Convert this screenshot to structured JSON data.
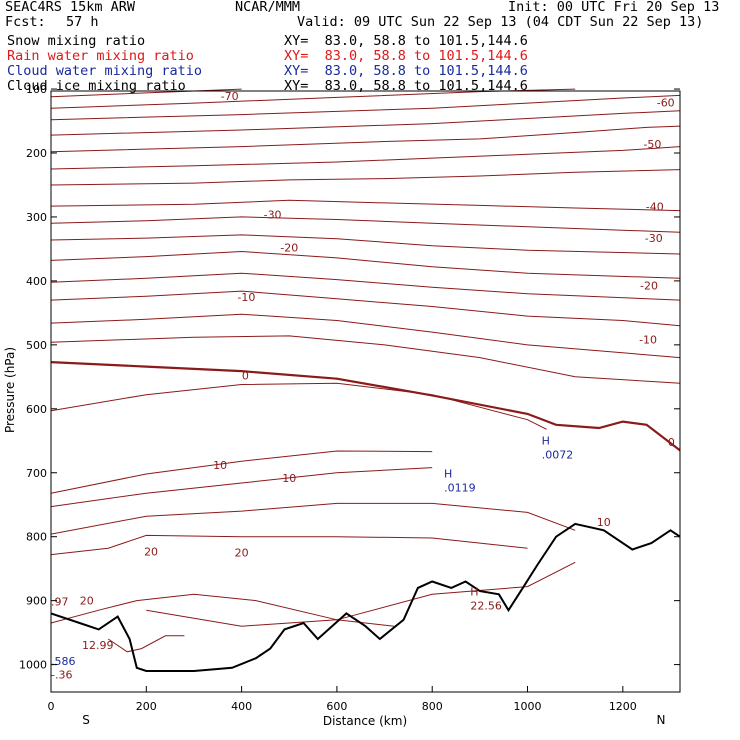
{
  "header": {
    "model": "SEAC4RS 15km ARW",
    "center": "NCAR/MMM",
    "init": "Init: 00 UTC Fri 20 Sep 13",
    "fcst_label": "Fcst:",
    "fcst_value": "57 h",
    "valid": "Valid: 09 UTC Sun 22 Sep 13 (04 CDT Sun 22 Sep 13)"
  },
  "fields": [
    {
      "name": "Snow mixing ratio",
      "xy": "XY=  83.0, 58.8 to 101.5,144.6",
      "color": "#000000"
    },
    {
      "name": "Rain water mixing ratio",
      "xy": "XY=  83.0, 58.8 to 101.5,144.6",
      "color": "#e01818"
    },
    {
      "name": "Cloud water mixing ratio",
      "xy": "XY=  83.0, 58.8 to 101.5,144.6",
      "color": "#1a2aa0"
    },
    {
      "name": "Cloud ice mixing ratio",
      "xy": "XY=  83.0, 58.8 to 101.5,144.6",
      "color": "#000000"
    }
  ],
  "chart_data": {
    "type": "line",
    "xlabel": "Distance (km)",
    "ylabel": "Pressure (hPa)",
    "xlim": [
      0,
      1320
    ],
    "ylim": [
      1050,
      100
    ],
    "x_ticks": [
      0,
      200,
      400,
      600,
      800,
      1000,
      1200
    ],
    "y_ticks": [
      100,
      200,
      300,
      400,
      500,
      600,
      700,
      800,
      900,
      1000
    ],
    "end_labels": {
      "left": "S",
      "right": "N"
    },
    "contour_color": "#8b1a1a",
    "temperature_contours": [
      {
        "label": "-70",
        "points": [
          [
            0,
            112
          ],
          [
            200,
            106
          ],
          [
            400,
            100
          ]
        ]
      },
      {
        "label": "",
        "points": [
          [
            0,
            130
          ],
          [
            300,
            122
          ],
          [
            600,
            113
          ],
          [
            900,
            104
          ],
          [
            1100,
            100
          ]
        ]
      },
      {
        "label": "-60",
        "points": [
          [
            0,
            148
          ],
          [
            400,
            140
          ],
          [
            800,
            130
          ],
          [
            1000,
            122
          ],
          [
            1200,
            114
          ],
          [
            1320,
            110
          ]
        ]
      },
      {
        "label": "",
        "points": [
          [
            0,
            172
          ],
          [
            400,
            164
          ],
          [
            800,
            154
          ],
          [
            1000,
            146
          ],
          [
            1200,
            138
          ],
          [
            1320,
            134
          ]
        ]
      },
      {
        "label": "-50",
        "points": [
          [
            0,
            198
          ],
          [
            400,
            190
          ],
          [
            700,
            182
          ],
          [
            900,
            178
          ],
          [
            1100,
            168
          ],
          [
            1250,
            160
          ],
          [
            1320,
            158
          ]
        ]
      },
      {
        "label": "",
        "points": [
          [
            0,
            225
          ],
          [
            300,
            220
          ],
          [
            600,
            214
          ],
          [
            800,
            208
          ],
          [
            1000,
            202
          ],
          [
            1200,
            196
          ],
          [
            1320,
            190
          ]
        ]
      },
      {
        "label": "",
        "points": [
          [
            0,
            250
          ],
          [
            300,
            247
          ],
          [
            500,
            242
          ],
          [
            700,
            240
          ],
          [
            900,
            236
          ],
          [
            1100,
            230
          ],
          [
            1320,
            226
          ]
        ]
      },
      {
        "label": "-40",
        "points": [
          [
            0,
            283
          ],
          [
            300,
            280
          ],
          [
            500,
            274
          ],
          [
            700,
            278
          ],
          [
            900,
            282
          ],
          [
            1100,
            286
          ],
          [
            1320,
            290
          ]
        ]
      },
      {
        "label": "-30",
        "points": [
          [
            0,
            310
          ],
          [
            200,
            306
          ],
          [
            400,
            300
          ],
          [
            600,
            304
          ],
          [
            800,
            310
          ],
          [
            1100,
            318
          ],
          [
            1320,
            324
          ]
        ]
      },
      {
        "label": "",
        "points": [
          [
            0,
            336
          ],
          [
            200,
            333
          ],
          [
            400,
            328
          ],
          [
            600,
            334
          ],
          [
            800,
            345
          ],
          [
            1000,
            352
          ],
          [
            1320,
            358
          ]
        ]
      },
      {
        "label": "-20",
        "points": [
          [
            0,
            368
          ],
          [
            200,
            362
          ],
          [
            400,
            354
          ],
          [
            600,
            364
          ],
          [
            800,
            378
          ],
          [
            1000,
            388
          ],
          [
            1320,
            396
          ]
        ]
      },
      {
        "label": "",
        "points": [
          [
            0,
            402
          ],
          [
            200,
            396
          ],
          [
            400,
            388
          ],
          [
            600,
            398
          ],
          [
            800,
            410
          ],
          [
            1000,
            420
          ],
          [
            1320,
            430
          ]
        ]
      },
      {
        "label": "-10",
        "points": [
          [
            0,
            430
          ],
          [
            200,
            424
          ],
          [
            400,
            416
          ],
          [
            600,
            428
          ],
          [
            800,
            440
          ],
          [
            1000,
            455
          ],
          [
            1200,
            462
          ],
          [
            1320,
            470
          ]
        ]
      },
      {
        "label": "",
        "points": [
          [
            0,
            466
          ],
          [
            200,
            460
          ],
          [
            400,
            452
          ],
          [
            600,
            462
          ],
          [
            800,
            480
          ],
          [
            1000,
            500
          ],
          [
            1320,
            520
          ]
        ]
      },
      {
        "label": "",
        "points": [
          [
            0,
            496
          ],
          [
            300,
            488
          ],
          [
            500,
            486
          ],
          [
            700,
            500
          ],
          [
            900,
            520
          ],
          [
            1100,
            550
          ],
          [
            1320,
            560
          ]
        ]
      },
      {
        "label": "0",
        "points": [
          [
            0,
            527
          ],
          [
            200,
            534
          ],
          [
            400,
            541
          ],
          [
            600,
            553
          ],
          [
            800,
            579
          ],
          [
            1000,
            608
          ],
          [
            1060,
            625
          ],
          [
            1150,
            630
          ],
          [
            1200,
            620
          ],
          [
            1250,
            625
          ],
          [
            1320,
            665
          ]
        ],
        "bold": true
      },
      {
        "label": "",
        "points": [
          [
            0,
            603
          ],
          [
            200,
            578
          ],
          [
            400,
            562
          ],
          [
            600,
            560
          ],
          [
            800,
            578
          ],
          [
            1000,
            617
          ],
          [
            1040,
            632
          ]
        ]
      },
      {
        "label": "10",
        "points": [
          [
            0,
            732
          ],
          [
            200,
            702
          ],
          [
            400,
            682
          ],
          [
            600,
            666
          ],
          [
            800,
            667
          ]
        ]
      },
      {
        "label": "",
        "points": [
          [
            0,
            753
          ],
          [
            200,
            732
          ],
          [
            400,
            716
          ],
          [
            600,
            700
          ],
          [
            800,
            692
          ]
        ]
      },
      {
        "label": "",
        "points": [
          [
            0,
            796
          ],
          [
            200,
            768
          ],
          [
            400,
            760
          ],
          [
            600,
            748
          ],
          [
            800,
            748
          ],
          [
            1000,
            762
          ],
          [
            1100,
            790
          ]
        ]
      },
      {
        "label": "20",
        "points": [
          [
            0,
            828
          ],
          [
            120,
            818
          ],
          [
            200,
            798
          ],
          [
            400,
            800
          ],
          [
            600,
            800
          ],
          [
            800,
            802
          ],
          [
            1000,
            818
          ]
        ]
      },
      {
        "label": "",
        "points": [
          [
            200,
            915
          ],
          [
            400,
            940
          ],
          [
            600,
            930
          ],
          [
            800,
            890
          ],
          [
            1000,
            878
          ],
          [
            1100,
            840
          ]
        ]
      },
      {
        "label": "",
        "points": [
          [
            0,
            935
          ],
          [
            100,
            915
          ],
          [
            180,
            900
          ],
          [
            300,
            890
          ],
          [
            430,
            900
          ],
          [
            600,
            930
          ],
          [
            720,
            940
          ]
        ]
      },
      {
        "label": "",
        "points": [
          [
            120,
            960
          ],
          [
            160,
            980
          ],
          [
            190,
            975
          ],
          [
            240,
            955
          ],
          [
            280,
            955
          ]
        ]
      }
    ],
    "contour_labels": [
      {
        "text": "-70",
        "x": 375,
        "y": 111
      },
      {
        "text": "-60",
        "x": 1290,
        "y": 121
      },
      {
        "text": "-50",
        "x": 1262,
        "y": 186
      },
      {
        "text": "-40",
        "x": 1267,
        "y": 284
      },
      {
        "text": "-30",
        "x": 465,
        "y": 296
      },
      {
        "text": "-30",
        "x": 1265,
        "y": 333
      },
      {
        "text": "-20",
        "x": 500,
        "y": 348
      },
      {
        "text": "-20",
        "x": 1255,
        "y": 407
      },
      {
        "text": "-10",
        "x": 410,
        "y": 425
      },
      {
        "text": "-10",
        "x": 1253,
        "y": 492
      },
      {
        "text": "0",
        "x": 408,
        "y": 548
      },
      {
        "text": "0",
        "x": 1302,
        "y": 652
      },
      {
        "text": "10",
        "x": 355,
        "y": 688
      },
      {
        "text": "10",
        "x": 500,
        "y": 708
      },
      {
        "text": "10",
        "x": 1160,
        "y": 777
      },
      {
        "text": "20",
        "x": 210,
        "y": 823
      },
      {
        "text": "20",
        "x": 400,
        "y": 825
      },
      {
        "text": "20",
        "x": 75,
        "y": 900
      }
    ],
    "terrain_line": [
      [
        0,
        920
      ],
      [
        60,
        935
      ],
      [
        100,
        945
      ],
      [
        140,
        925
      ],
      [
        165,
        960
      ],
      [
        180,
        1005
      ],
      [
        200,
        1010
      ],
      [
        300,
        1010
      ],
      [
        380,
        1005
      ],
      [
        430,
        990
      ],
      [
        460,
        975
      ],
      [
        490,
        945
      ],
      [
        530,
        935
      ],
      [
        560,
        960
      ],
      [
        620,
        920
      ],
      [
        660,
        940
      ],
      [
        690,
        960
      ],
      [
        740,
        930
      ],
      [
        770,
        880
      ],
      [
        800,
        870
      ],
      [
        840,
        880
      ],
      [
        870,
        870
      ],
      [
        900,
        885
      ],
      [
        940,
        890
      ],
      [
        960,
        915
      ],
      [
        990,
        880
      ],
      [
        1020,
        845
      ],
      [
        1060,
        800
      ],
      [
        1100,
        780
      ],
      [
        1160,
        790
      ],
      [
        1220,
        820
      ],
      [
        1260,
        810
      ],
      [
        1300,
        790
      ],
      [
        1320,
        800
      ]
    ],
    "annotations": [
      {
        "type": "max",
        "marker": "H",
        "value": ".0119",
        "x": 825,
        "y": 714,
        "color": "#1a2aa0"
      },
      {
        "type": "max",
        "marker": "H",
        "value": ".0072",
        "x": 1030,
        "y": 662,
        "color": "#1a2aa0"
      },
      {
        "type": "max",
        "marker": "H",
        "value": "22.56",
        "x": 880,
        "y": 898,
        "color": "#8b1a1a"
      },
      {
        "type": "label",
        "marker": "",
        "value": ".97",
        "x": 0,
        "y": 892,
        "color": "#8b1a1a"
      },
      {
        "type": "label",
        "marker": "",
        "value": "12.99",
        "x": 65,
        "y": 960,
        "color": "#8b1a1a"
      },
      {
        "type": "label",
        "marker": "",
        "value": ".586",
        "x": 0,
        "y": 985,
        "color": "#1a2aa0"
      },
      {
        "type": "label",
        "marker": "",
        "value": "-.36",
        "x": 0,
        "y": 1006,
        "color": "#8b1a1a"
      }
    ]
  }
}
